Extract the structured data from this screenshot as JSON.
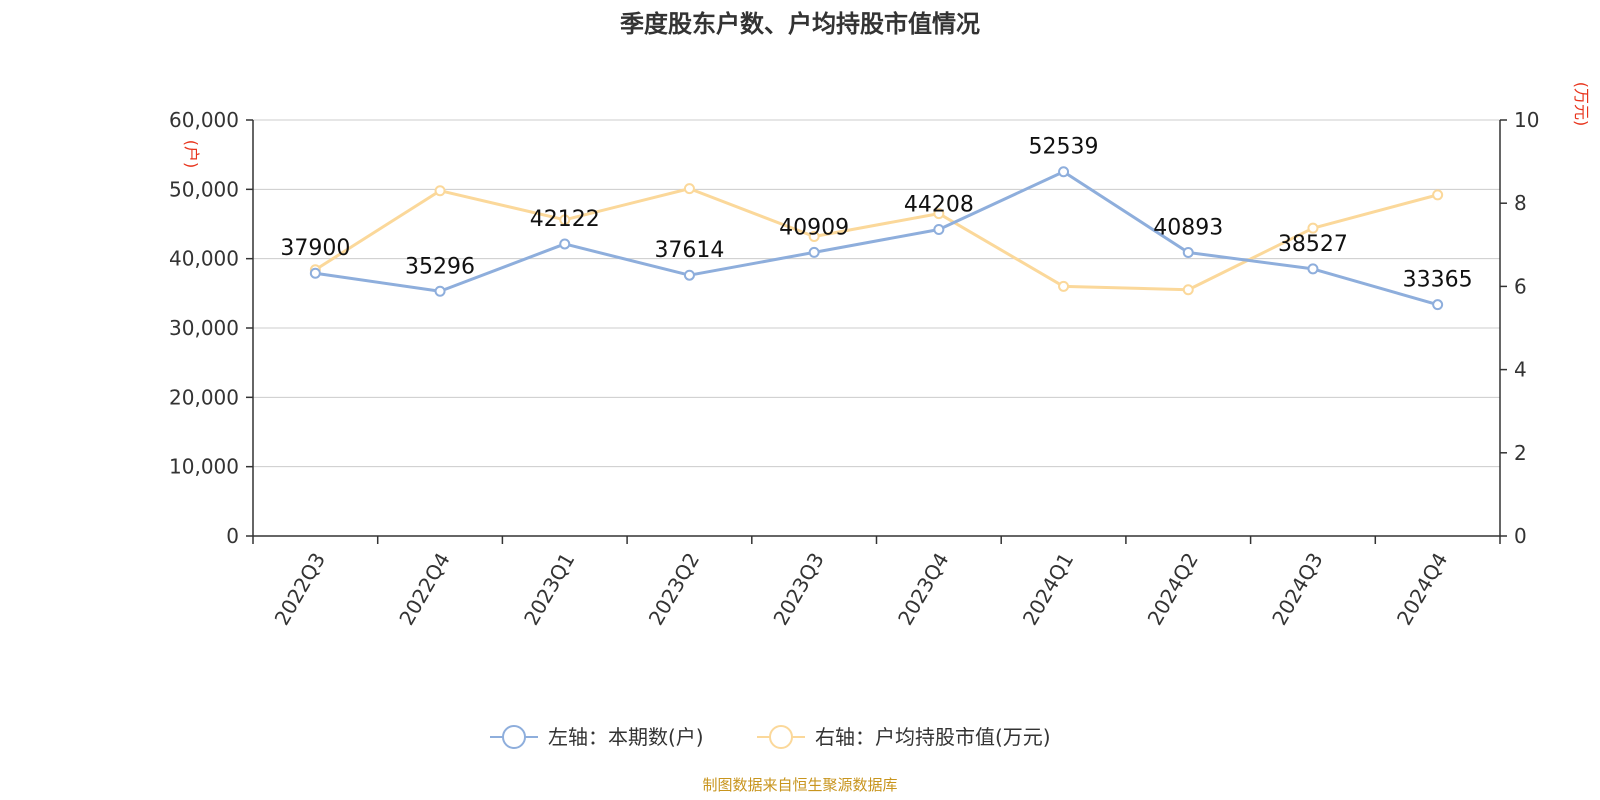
{
  "title": "季度股东户数、户均持股市值情况",
  "source": "制图数据来自恒生聚源数据库",
  "colors": {
    "left_series": "#8eaedc",
    "right_series": "#fbd89a",
    "grid": "#cccccc",
    "axis": "#333333",
    "unit": "#e8341c",
    "source": "#c8951e"
  },
  "chart_data": {
    "type": "line",
    "categories": [
      "2022Q3",
      "2022Q4",
      "2023Q1",
      "2023Q2",
      "2023Q3",
      "2023Q4",
      "2024Q1",
      "2024Q2",
      "2024Q3",
      "2024Q4"
    ],
    "left_axis": {
      "unit": "(户)",
      "ylim": [
        0,
        60000
      ],
      "ticks": [
        "0",
        "10,000",
        "20,000",
        "30,000",
        "40,000",
        "50,000",
        "60,000"
      ],
      "tick_values": [
        0,
        10000,
        20000,
        30000,
        40000,
        50000,
        60000
      ]
    },
    "right_axis": {
      "unit": "(万元)",
      "ylim": [
        0,
        10
      ],
      "ticks": [
        "0",
        "2",
        "4",
        "6",
        "8",
        "10"
      ],
      "tick_values": [
        0,
        2,
        4,
        6,
        8,
        10
      ]
    },
    "series": [
      {
        "name": "左轴：本期数(户)",
        "axis": "left",
        "values": [
          37900,
          35296,
          42122,
          37614,
          40909,
          44208,
          52539,
          40893,
          38527,
          33365
        ],
        "labels": [
          "37900",
          "35296",
          "42122",
          "37614",
          "40909",
          "44208",
          "52539",
          "40893",
          "38527",
          "33365"
        ]
      },
      {
        "name": "右轴：户均持股市值(万元)",
        "axis": "right",
        "values": [
          6.4,
          8.3,
          7.6,
          8.35,
          7.2,
          7.75,
          6.0,
          5.92,
          7.4,
          8.2
        ]
      }
    ],
    "grid": true,
    "legend_position": "bottom"
  }
}
